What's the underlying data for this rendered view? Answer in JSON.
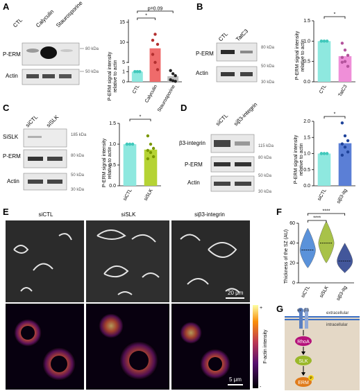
{
  "panels": {
    "A": {
      "label": "A",
      "lanes": [
        "CTL",
        "Calyculin",
        "Staurosporine"
      ],
      "blots": [
        "P-ERM",
        "Actin"
      ],
      "mw": [
        "80 kDa",
        "50 kDa"
      ],
      "chart": {
        "ylabel": [
          "P-ERM signal intensity",
          "relative to actin"
        ],
        "yticks": [
          "0",
          "1",
          "5",
          "10",
          "15"
        ],
        "categories": [
          "CTL",
          "Calyculin",
          "Staurosporine"
        ],
        "sig": [
          "*",
          "p=0.09"
        ]
      }
    },
    "B": {
      "label": "B",
      "lanes": [
        "CTL",
        "TatC3"
      ],
      "blots": [
        "P-ERM",
        "Actin"
      ],
      "mw": [
        "80 kDa",
        "50 kDa",
        "30 kDa"
      ],
      "chart": {
        "ylabel": [
          "P-ERM signal intensity",
          "relative to actin"
        ],
        "yticks": [
          "0.0",
          "0.5",
          "1.0",
          "1.5"
        ],
        "categories": [
          "CTL",
          "TatC3"
        ],
        "sig": [
          "*"
        ]
      }
    },
    "C": {
      "label": "C",
      "lanes": [
        "siCTL",
        "siSLK"
      ],
      "blots": [
        "SiSLK",
        "P-ERM",
        "Actin"
      ],
      "mw": [
        "185 kDa",
        "80 kDa",
        "50 kDa",
        "30 kDa"
      ],
      "chart": {
        "ylabel": [
          "P-ERM signal intensity",
          "relative to actin"
        ],
        "yticks": [
          "0.0",
          "0.5",
          "1.0",
          "1.5"
        ],
        "categories": [
          "siCTL",
          "siSLK"
        ],
        "sig": [
          "*"
        ]
      }
    },
    "D": {
      "label": "D",
      "lanes": [
        "siCTL",
        "siβ3-integrin"
      ],
      "blots": [
        "β3-integrin",
        "P-ERM",
        "Actin"
      ],
      "mw": [
        "115 kDa",
        "80 kDa",
        "50 kDa",
        "30 kDa"
      ],
      "chart": {
        "ylabel": [
          "P-ERM signal intensity",
          "relative to actin"
        ],
        "yticks": [
          "0.0",
          "0.5",
          "1.0",
          "1.5",
          "2.0"
        ],
        "categories": [
          "siCTL",
          "siβ3-Itg"
        ],
        "sig": [
          "*"
        ]
      }
    },
    "E": {
      "label": "E",
      "columns": [
        "siCTL",
        "siSLK",
        "siβ3-integrin"
      ],
      "scale_top": "20 μm",
      "scale_bottom": "5 μm",
      "colorbar_label": "F-actin intensity",
      "colorbar_plus": "+",
      "colorbar_minus": "-"
    },
    "F": {
      "label": "F",
      "ylabel": "Thickness of the SZ (AU)",
      "yticks": [
        "0",
        "20",
        "40",
        "60"
      ],
      "categories": [
        "siCTL",
        "siSLK",
        "siβ3-Itg"
      ],
      "sig": [
        "****",
        "****"
      ]
    },
    "G": {
      "label": "G",
      "extracellular": "extracellular",
      "intracellular": "intracellular",
      "integrin_a": "αv",
      "integrin_b": "β3",
      "nodes": [
        "RhoA",
        "SLK",
        "ERM"
      ],
      "phospho": "P"
    }
  },
  "chart_data": [
    {
      "panel": "A",
      "type": "bar",
      "categories": [
        "CTL",
        "Calyculin",
        "Staurosporine"
      ],
      "values": [
        1.0,
        8.5,
        0.55
      ],
      "points": [
        [
          1,
          1,
          1,
          1,
          1,
          1
        ],
        [
          10.5,
          12,
          9.5,
          7,
          5,
          1.2
        ],
        [
          1.1,
          0.8,
          0.6,
          0.2,
          0.1,
          0.05
        ]
      ],
      "ylabel": "P-ERM signal intensity relative to actin",
      "colors": [
        "#8ee8df",
        "#ef6b6b",
        "#bdbdbd"
      ]
    },
    {
      "panel": "B",
      "type": "bar",
      "categories": [
        "CTL",
        "TatC3"
      ],
      "values": [
        1.0,
        0.63
      ],
      "points": [
        [
          1,
          1,
          1,
          1,
          1,
          1,
          1
        ],
        [
          0.95,
          0.78,
          0.65,
          0.6,
          0.5,
          0.38,
          0.48
        ]
      ],
      "ylim": [
        0,
        1.5
      ],
      "colors": [
        "#8ee8df",
        "#ef8fd8"
      ]
    },
    {
      "panel": "C",
      "type": "bar",
      "categories": [
        "siCTL",
        "siSLK"
      ],
      "values": [
        1.0,
        0.87
      ],
      "points": [
        [
          1,
          1,
          1,
          1,
          1,
          1,
          1
        ],
        [
          1.2,
          1.0,
          0.9,
          0.85,
          0.8,
          0.7,
          0.65
        ]
      ],
      "ylim": [
        0,
        1.5
      ],
      "colors": [
        "#8ee8df",
        "#b5d334"
      ]
    },
    {
      "panel": "D",
      "type": "bar",
      "categories": [
        "siCTL",
        "siβ3-Itg"
      ],
      "values": [
        1.0,
        1.32
      ],
      "points": [
        [
          1,
          1,
          1,
          1,
          1,
          1,
          1
        ],
        [
          1.95,
          1.55,
          1.4,
          1.3,
          1.2,
          1.05,
          0.95
        ]
      ],
      "ylim": [
        0,
        2.0
      ],
      "colors": [
        "#8ee8df",
        "#5b7fd6"
      ]
    },
    {
      "panel": "F",
      "type": "violin",
      "categories": [
        "siCTL",
        "siSLK",
        "siβ3-Itg"
      ],
      "medians": [
        33,
        40,
        22
      ],
      "ylim": [
        0,
        60
      ],
      "colors": [
        "#3e7fd4",
        "#9ab82a",
        "#233a8a"
      ]
    }
  ]
}
